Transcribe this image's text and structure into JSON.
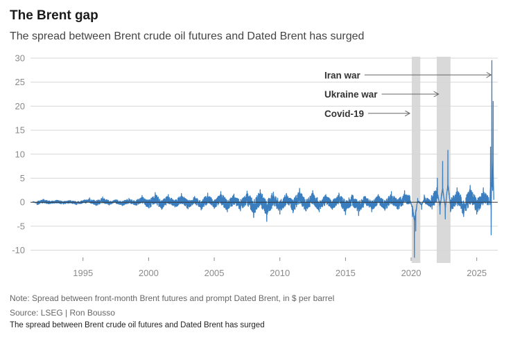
{
  "header": {
    "title": "The Brent gap",
    "subtitle": "The spread between Brent crude oil futures and Dated Brent has surged"
  },
  "footer": {
    "note": "Note: Spread between front-month Brent futures and prompt Dated Brent, in $ per barrel",
    "source": "Source: LSEG | Ron Bousso",
    "caption": "The spread between Brent crude oil futures and Dated Brent has surged"
  },
  "colors": {
    "line": "#3a7ebf",
    "shade": "#d9d9d9",
    "grid": "#d6d6d6",
    "zero": "#333333"
  },
  "chart_data": {
    "type": "line",
    "title": "The Brent gap",
    "ylabel": "$ per barrel",
    "xlim": [
      1991.0,
      2026.6
    ],
    "ylim": [
      -11.5,
      30
    ],
    "x_ticks": [
      "1995",
      "2000",
      "2005",
      "2010",
      "2015",
      "2020",
      "2025"
    ],
    "y_ticks": [
      "30",
      "25",
      "20",
      "15",
      "10",
      "5",
      "0",
      "-5",
      "-10"
    ],
    "grid": true,
    "shaded_periods": [
      {
        "start": 2020.05,
        "end": 2020.7,
        "label": "Covid-19"
      },
      {
        "start": 2021.95,
        "end": 2023.0,
        "label": "Ukraine war"
      }
    ],
    "annotations": [
      {
        "label": "Iran war",
        "x": 2026.2,
        "y": 26.5
      },
      {
        "label": "Ukraine war",
        "x": 2022.2,
        "y": 22.5
      },
      {
        "label": "Covid-19",
        "x": 2020.0,
        "y": 18.5
      }
    ],
    "series": [
      {
        "values_note": "",
        "x": [
          1991.2,
          1991.5,
          1992.0,
          1992.5,
          1993.0,
          1993.5,
          1994.0,
          1994.5,
          1995.0,
          1995.5,
          1996.0,
          1996.5,
          1997.0,
          1997.5,
          1998.0,
          1998.5,
          1999.0,
          1999.5,
          2000.0,
          2000.5,
          2001.0,
          2001.5,
          2002.0,
          2002.5,
          2003.0,
          2003.5,
          2004.0,
          2004.5,
          2005.0,
          2005.5,
          2006.0,
          2006.5,
          2007.0,
          2007.5,
          2008.0,
          2008.5,
          2009.0,
          2009.5,
          2010.0,
          2010.5,
          2011.0,
          2011.5,
          2012.0,
          2012.5,
          2013.0,
          2013.5,
          2014.0,
          2014.5,
          2015.0,
          2015.5,
          2016.0,
          2016.5,
          2017.0,
          2017.5,
          2018.0,
          2018.5,
          2019.0,
          2019.5,
          2019.9,
          2020.1,
          2020.25,
          2020.35,
          2020.5,
          2020.8,
          2021.0,
          2021.5,
          2022.0,
          2022.2,
          2022.4,
          2022.6,
          2022.8,
          2023.0,
          2023.5,
          2024.0,
          2024.5,
          2025.0,
          2025.5,
          2025.9,
          2026.0,
          2026.05,
          2026.1,
          2026.15,
          2026.2,
          2026.25,
          2026.3
        ],
        "y": [
          0.2,
          -0.5,
          0.6,
          -0.3,
          0.4,
          -0.4,
          0.3,
          -0.5,
          0.2,
          0.9,
          -0.6,
          1.1,
          -0.4,
          0.5,
          -0.7,
          0.8,
          -0.5,
          1.4,
          -1.2,
          2.0,
          -1.5,
          1.6,
          -1.0,
          1.8,
          -1.4,
          1.2,
          -1.6,
          1.9,
          -1.3,
          2.2,
          -2.0,
          1.7,
          -1.8,
          2.3,
          -3.2,
          2.6,
          -4.0,
          2.1,
          -2.5,
          1.8,
          -2.2,
          2.9,
          -1.8,
          2.4,
          -2.0,
          1.6,
          -1.5,
          1.9,
          -2.6,
          1.4,
          -2.8,
          1.2,
          -2.0,
          1.6,
          -1.7,
          2.2,
          -1.5,
          2.4,
          1.2,
          -3.0,
          -11.5,
          -6.0,
          0.8,
          -1.5,
          1.5,
          -1.0,
          5.0,
          -2.5,
          8.5,
          -3.5,
          10.8,
          -2.0,
          3.0,
          -3.0,
          3.5,
          -2.5,
          3.0,
          1.0,
          -0.5,
          11.5,
          -6.8,
          29.5,
          4.0,
          21.0,
          0.5
        ]
      }
    ]
  }
}
